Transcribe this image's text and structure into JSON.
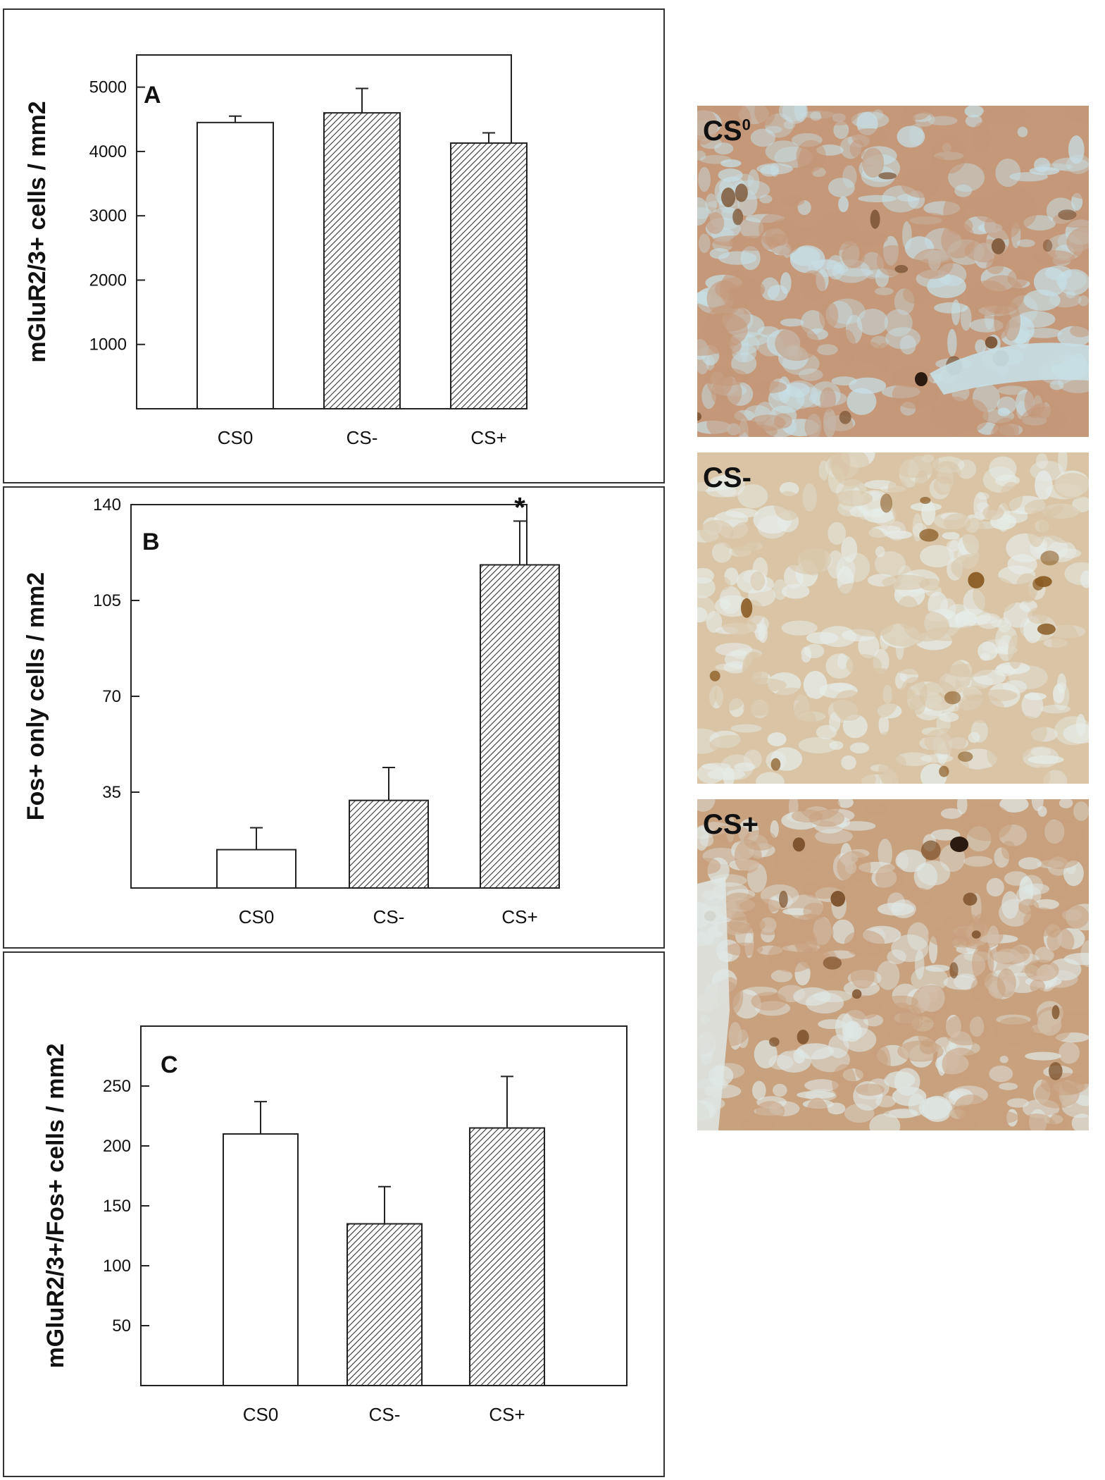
{
  "chart_data": [
    {
      "type": "bar",
      "panel_label": "A",
      "categories": [
        "CS0",
        "CS-",
        "CS+"
      ],
      "values": [
        4450,
        4600,
        4130
      ],
      "errors": [
        100,
        380,
        160
      ],
      "ylabel": "mGluR2/3+ cells / mm2",
      "yticks": [
        1000,
        2000,
        3000,
        4000,
        5000
      ],
      "ylim": [
        0,
        5500
      ],
      "bar_fills": [
        "open",
        "hatched",
        "hatched"
      ],
      "grid": false
    },
    {
      "type": "bar",
      "panel_label": "B",
      "categories": [
        "CS0",
        "CS-",
        "CS+"
      ],
      "values": [
        14,
        32,
        118
      ],
      "errors": [
        8,
        12,
        16
      ],
      "ylabel": "Fos+ only cells / mm2",
      "yticks": [
        35,
        70,
        105,
        140
      ],
      "ylim": [
        0,
        140
      ],
      "bar_fills": [
        "open",
        "hatched",
        "hatched"
      ],
      "significance": [
        "",
        "",
        "*"
      ],
      "grid": false
    },
    {
      "type": "bar",
      "panel_label": "C",
      "categories": [
        "CS0",
        "CS-",
        "CS+"
      ],
      "values": [
        210,
        135,
        215
      ],
      "errors": [
        27,
        31,
        43
      ],
      "ylabel": "mGluR2/3+/Fos+ cells / mm2",
      "yticks": [
        50,
        100,
        150,
        200,
        250
      ],
      "ylim": [
        0,
        300
      ],
      "bar_fills": [
        "open",
        "hatched",
        "hatched"
      ],
      "grid": false
    }
  ],
  "micrographs": [
    {
      "label_main": "CS",
      "label_sup": "0",
      "background": "#c49878",
      "spot_color": "#c6dfe6",
      "cell_color": "#7a5232"
    },
    {
      "label_main": "CS-",
      "label_sup": "",
      "background": "#d9c5a6",
      "spot_color": "#e6edea",
      "cell_color": "#8a5a22"
    },
    {
      "label_main": "CS+",
      "label_sup": "",
      "background": "#c8a17e",
      "spot_color": "#dfe8e6",
      "cell_color": "#7a4e28"
    }
  ],
  "colors": {
    "axis": "#222222",
    "hatch": "#333333",
    "text": "#111111"
  }
}
